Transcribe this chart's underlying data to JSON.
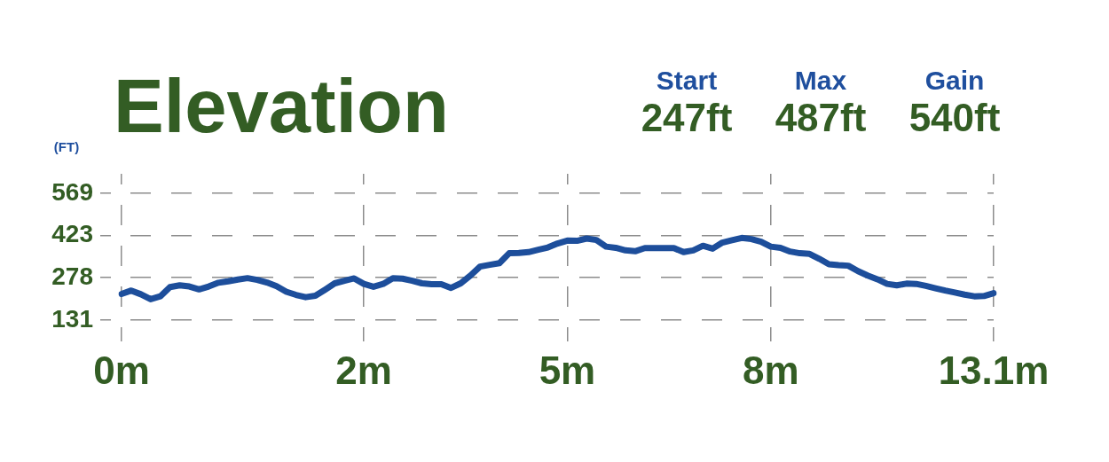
{
  "chart_data": {
    "type": "line",
    "title": "Elevation",
    "ylabel": "(FT)",
    "annotations": [
      "Start",
      "247ft",
      "Max",
      "487ft",
      "Gain",
      "540ft"
    ],
    "categories": [
      "0m",
      null,
      null,
      null,
      null,
      null,
      null,
      null,
      null,
      null,
      null,
      null,
      null,
      null,
      null,
      null,
      null,
      null,
      null,
      null,
      null,
      null,
      null,
      null,
      null,
      "2m",
      null,
      null,
      null,
      null,
      null,
      null,
      null,
      null,
      null,
      null,
      null,
      null,
      null,
      null,
      null,
      null,
      null,
      null,
      null,
      null,
      "5m",
      null,
      null,
      null,
      null,
      null,
      null,
      null,
      null,
      null,
      null,
      null,
      null,
      null,
      null,
      null,
      null,
      null,
      null,
      null,
      null,
      "8m",
      null,
      null,
      null,
      null,
      null,
      null,
      null,
      null,
      null,
      null,
      null,
      null,
      null,
      null,
      null,
      null,
      null,
      null,
      null,
      null,
      null,
      null,
      "13.1m"
    ],
    "series": [
      {
        "color": "#1d4e9b",
        "values": [
          221,
          233,
          220,
          203,
          213,
          245,
          251,
          247,
          237,
          247,
          260,
          265,
          271,
          276,
          270,
          261,
          248,
          229,
          218,
          210,
          215,
          236,
          258,
          267,
          275,
          256,
          246,
          256,
          276,
          274,
          267,
          258,
          255,
          255,
          242,
          258,
          285,
          316,
          322,
          328,
          362,
          363,
          366,
          374,
          382,
          396,
          406,
          405,
          413,
          408,
          385,
          381,
          372,
          369,
          380,
          380,
          380,
          380,
          366,
          372,
          388,
          378,
          399,
          407,
          415,
          411,
          402,
          385,
          381,
          368,
          362,
          360,
          343,
          324,
          321,
          319,
          300,
          285,
          272,
          256,
          251,
          257,
          256,
          249,
          241,
          233,
          226,
          219,
          213,
          214,
          224
        ]
      }
    ],
    "ylim": [
      57,
      637
    ],
    "yticks": [
      131,
      278,
      423,
      569
    ],
    "grid": true,
    "line_style": "solid"
  }
}
